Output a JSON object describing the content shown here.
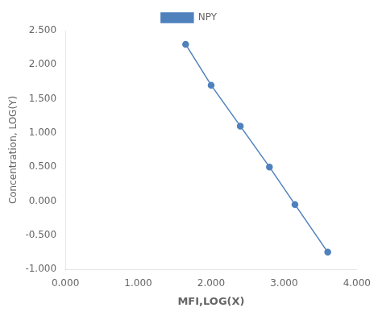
{
  "chart_data": {
    "type": "line",
    "x": [
      1.65,
      2.0,
      2.4,
      2.8,
      3.15,
      3.6
    ],
    "series": [
      {
        "name": "NPY",
        "color": "#4f81bd",
        "marker": "circle",
        "values": [
          2.3,
          1.7,
          1.1,
          0.5,
          -0.05,
          -0.75
        ]
      }
    ],
    "xlabel": "MFI,LOG(X)",
    "ylabel": "Concentration, LOG(Y)",
    "xlim": [
      0.0,
      4.0
    ],
    "ylim": [
      -1.0,
      2.5
    ],
    "xticks": [
      {
        "value": 0,
        "label": "0.000"
      },
      {
        "value": 1,
        "label": "1.000"
      },
      {
        "value": 2,
        "label": "2.000"
      },
      {
        "value": 3,
        "label": "3.000"
      },
      {
        "value": 4,
        "label": "4.000"
      }
    ],
    "yticks": [
      {
        "value": -1,
        "label": "-1.000"
      },
      {
        "value": -0.5,
        "label": "-0.500"
      },
      {
        "value": 0,
        "label": "0.000"
      },
      {
        "value": 0.5,
        "label": "0.500"
      },
      {
        "value": 1,
        "label": "1.000"
      },
      {
        "value": 1.5,
        "label": "1.500"
      },
      {
        "value": 2,
        "label": "2.000"
      },
      {
        "value": 2.5,
        "label": "2.500"
      }
    ],
    "grid": false,
    "legend": "top"
  }
}
